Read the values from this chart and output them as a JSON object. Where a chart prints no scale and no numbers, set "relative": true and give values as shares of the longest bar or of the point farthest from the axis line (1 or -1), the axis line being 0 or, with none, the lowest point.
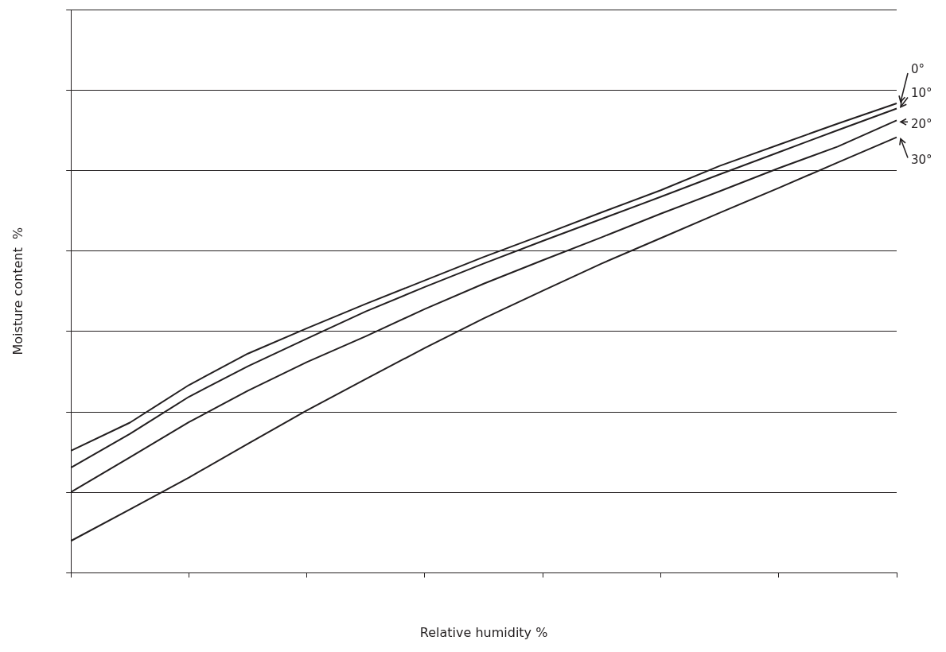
{
  "chart_data": {
    "type": "line",
    "relative": true,
    "xlabel": "Relative humidity %",
    "ylabel": "Moisture content  %",
    "grid": "y",
    "legend": "right",
    "marker": "none",
    "line_style": "solid",
    "categories": [
      null,
      null,
      null,
      null,
      null,
      null,
      null,
      null,
      null,
      null,
      null,
      null,
      null,
      null,
      null
    ],
    "series": [
      {
        "name": "0°",
        "color": "#231f20",
        "values": [
          0.26,
          0.32,
          0.4,
          0.467,
          0.521,
          0.573,
          0.623,
          0.673,
          0.72,
          0.768,
          0.815,
          0.867,
          0.912,
          0.957,
          1
        ]
      },
      {
        "name": "10°",
        "color": "#231f20",
        "values": [
          0.224,
          0.296,
          0.375,
          0.44,
          0.499,
          0.557,
          0.609,
          0.659,
          0.707,
          0.754,
          0.801,
          0.849,
          0.896,
          0.943,
          0.989
        ]
      },
      {
        "name": "20°",
        "color": "#231f20",
        "values": [
          0.172,
          0.246,
          0.321,
          0.388,
          0.449,
          0.504,
          0.562,
          0.616,
          0.666,
          0.715,
          0.765,
          0.813,
          0.862,
          0.908,
          0.964
        ]
      },
      {
        "name": "30°",
        "color": "#231f20",
        "values": [
          0.068,
          0.135,
          0.203,
          0.275,
          0.346,
          0.413,
          0.479,
          0.542,
          0.601,
          0.659,
          0.713,
          0.767,
          0.82,
          0.874,
          0.928
        ]
      }
    ]
  }
}
